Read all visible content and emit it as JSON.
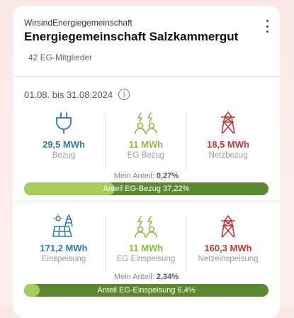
{
  "header": {
    "org_type": "WirsindEnergiegemeinschaft",
    "org_name": "Energiegemeinschaft Salzkammergut",
    "members": "42 EG-Mitglieder"
  },
  "period": {
    "label": "01.08. bis 31.08.2024",
    "info": "i"
  },
  "consumption": {
    "bezug": {
      "value": "29,5 MWh",
      "label": "Bezug"
    },
    "eg_bezug": {
      "value": "11 MWh",
      "label": "EG Bezug"
    },
    "netzbezug": {
      "value": "18,5 MWh",
      "label": "Netzbezug"
    },
    "share_label": "Mein Anteil:",
    "share_value": "0,27%",
    "bar_text": "Anteil EG-Bezug 37,22%",
    "bar_fraction": 0.3722
  },
  "production": {
    "einspeisung": {
      "value": "171,2 MWh",
      "label": "Einspeisung"
    },
    "eg_einspeisung": {
      "value": "11 MWh",
      "label": "EG Einspeisung"
    },
    "netzeinspeisung": {
      "value": "160,3 MWh",
      "label": "Netzeinspeisung"
    },
    "share_label": "Mein Anteil:",
    "share_value": "2,34%",
    "bar_text": "Anteil EG-Einspeisung 6,4%",
    "bar_fraction": 0.064
  },
  "colors": {
    "blue": "#2a7da6",
    "green": "#8bbb3e",
    "red": "#c03a3a",
    "bar_dark": "#5b8a2e",
    "bar_light": "#a6cc5a"
  },
  "icons": [
    "plug-icon",
    "community-share-icon",
    "power-tower-icon",
    "solar-panel-icon"
  ]
}
